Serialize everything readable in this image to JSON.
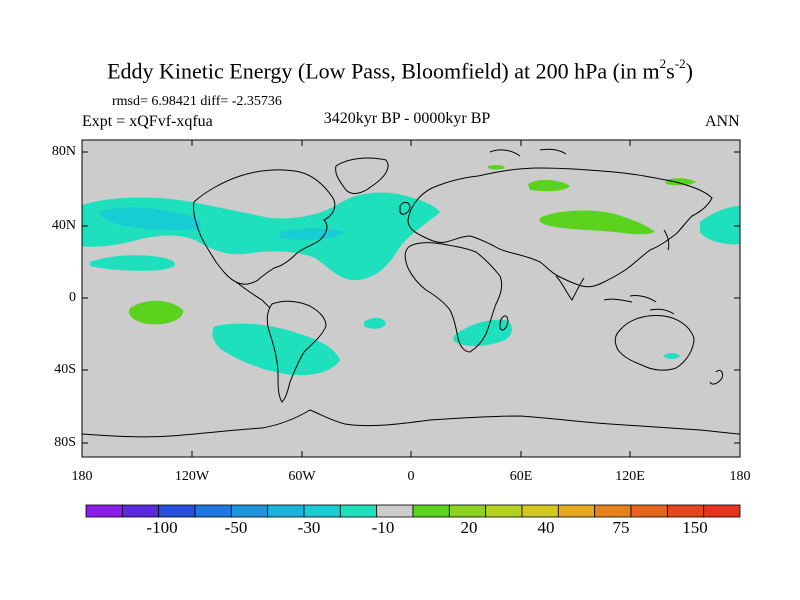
{
  "title": {
    "main": "Eddy Kinetic Energy (Low Pass, Bloomfield) at 200 hPa (in m",
    "sup1": "2",
    "mid": "s",
    "sup2": "-2",
    "end": ")"
  },
  "stats": "rmsd= 6.98421 diff= -2.35736",
  "experiment": "Expt = xQFvf-xqfua",
  "period": "3420kyr BP - 0000kyr BP",
  "season": "ANN",
  "map": {
    "y_ticks": [
      "80N",
      "40N",
      "0",
      "40S",
      "80S"
    ],
    "x_ticks": [
      "180",
      "120W",
      "60W",
      "0",
      "60E",
      "120E",
      "180"
    ],
    "land_color": "#cccccc",
    "coast_color": "#000000"
  },
  "colorbar": {
    "colors": [
      "#8a1ee8",
      "#5a28e0",
      "#2850e0",
      "#1e78e0",
      "#1e96dc",
      "#18b4dc",
      "#18ccd4",
      "#1ee0bc",
      "#cccccc",
      "#5ad21e",
      "#8cd21e",
      "#b4d21e",
      "#d2c81e",
      "#e6aa1e",
      "#e6821e",
      "#e6641e",
      "#e6461e",
      "#e6321e"
    ],
    "labels": [
      "-100",
      "-50",
      "-30",
      "-10",
      "20",
      "40",
      "75",
      "150"
    ]
  },
  "anomaly_colors": {
    "neg_small": "#1ee0bc",
    "neg_mid": "#18ccd4",
    "pos_small": "#5ad21e"
  }
}
